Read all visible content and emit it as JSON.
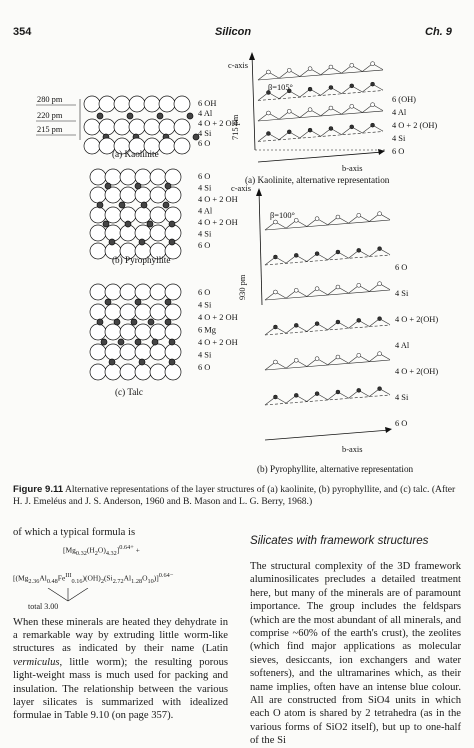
{
  "header": {
    "page_number": "354",
    "running_title": "Silicon",
    "chapter": "Ch. 9"
  },
  "figure": {
    "panel_a_caption": "(a) Kaolinite",
    "panel_b_caption": "(b) Pyrophyllite",
    "panel_c_caption": "(c) Talc",
    "panel_a_alt_caption": "(a) Kaolinite, alternative representation",
    "panel_b_alt_caption": "(b) Pyrophyllite, alternative representation",
    "dim_280": "280 pm",
    "dim_220": "220 pm",
    "dim_215": "215 pm",
    "kaolinite_layers": [
      "6 OH",
      "4 Al",
      "4 O + 2 OH",
      "4 Si",
      "6 O"
    ],
    "pyrophyllite_layers": [
      "6 O",
      "4 Si",
      "4 O + 2 OH",
      "4 Al",
      "4 O + 2 OH",
      "4 Si",
      "6 O"
    ],
    "talc_layers": [
      "6 O",
      "4 Si",
      "4 O + 2 OH",
      "6 Mg",
      "4 O + 2 OH",
      "4 Si",
      "6 O"
    ],
    "alt_a_labels": [
      "6 (OH)",
      "4 Al",
      "4 O + 2 (OH)",
      "4 Si",
      "6 O"
    ],
    "alt_b_labels": [
      "6 O",
      "4 Si",
      "4 O + 2(OH)",
      "4 Al",
      "4 O + 2(OH)",
      "4 Si",
      "6 O"
    ],
    "c_axis": "c-axis",
    "b_axis": "b-axis",
    "beta_a": "β=105°",
    "beta_b": "β=100°",
    "spacing_a": "715 pm",
    "spacing_b": "930 pm",
    "figure_label": "Figure 9.11",
    "caption_text": "Alternative representations of the layer structures of (a) kaolinite, (b) pyrophyllite, and (c) talc. (After H. J. Emeléus and J. S. Anderson, 1960 and B. Mason and L. G. Berry, 1968.)"
  },
  "left_column": {
    "intro": "of which a typical formula is",
    "formula_line1": "[Mg0.32(H2O)4.32]0.64+",
    "formula_plus": "+",
    "formula_line2": "[(Mg2.36Al0.48FeIII0.16)(OH)2(Si2.72Al1.28O10)]0.64−",
    "formula_total": "total 3.00",
    "body": "When these minerals are heated they dehydrate in a remarkable way by extruding little worm-like structures as indicated by their name (Latin vermiculus, little worm); the resulting porous light-weight mass is much used for packing and insulation. The relationship between the various layer silicates is summarized with idealized formulae in Table 9.10 (on page 357)."
  },
  "right_column": {
    "section_title": "Silicates with framework structures",
    "body": "The structural complexity of the 3D framework aluminosilicates precludes a detailed treatment here, but many of the minerals are of paramount importance. The group includes the feldspars (which are the most abundant of all minerals, and comprise ~60% of the earth's crust), the zeolites (which find major applications as molecular sieves, desiccants, ion exchangers and water softeners), and the ultramarines which, as their name implies, often have an intense blue colour. All are constructed from SiO4 units in which each O atom is shared by 2 tetrahedra (as in the various forms of SiO2 itself), but up to one-half of the Si"
  }
}
